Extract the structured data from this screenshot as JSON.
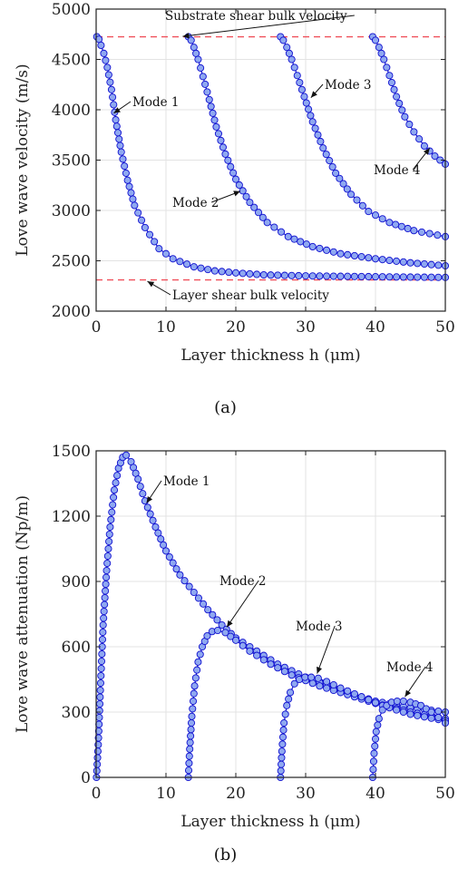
{
  "chart_data": [
    {
      "type": "line",
      "caption": "(a)",
      "xlabel": "Layer thickness h (μm)",
      "ylabel": "Love wave velocity (m/s)",
      "xlim": [
        0,
        50
      ],
      "ylim": [
        2000,
        5000
      ],
      "xticks": [
        "0",
        "10",
        "20",
        "30",
        "40",
        "50"
      ],
      "yticks": [
        "2000",
        "2500",
        "3000",
        "3500",
        "4000",
        "4500",
        "5000"
      ],
      "grid": true,
      "reference_lines": [
        {
          "label": "Substrate shear bulk velocity",
          "y": 4725,
          "color": "#f0505a"
        },
        {
          "label": "Layer shear bulk velocity",
          "y": 2310,
          "color": "#f0505a"
        }
      ],
      "series": [
        {
          "name": "Mode 1",
          "x": [
            0.1,
            0.4,
            0.7,
            1.1,
            1.6,
            2.2,
            2.8,
            3.6,
            4.5,
            5.5,
            7,
            9,
            11,
            14,
            17,
            20,
            24,
            30,
            36,
            42,
            50
          ],
          "y": [
            4725,
            4700,
            4640,
            4560,
            4420,
            4200,
            3900,
            3580,
            3300,
            3050,
            2830,
            2620,
            2520,
            2440,
            2400,
            2380,
            2360,
            2350,
            2345,
            2340,
            2335
          ]
        },
        {
          "name": "Mode 2",
          "x": [
            13.2,
            13.6,
            14,
            14.6,
            15.3,
            16.2,
            17.2,
            18.5,
            20,
            22,
            24.5,
            27.5,
            31,
            35,
            40,
            45,
            50
          ],
          "y": [
            4725,
            4690,
            4620,
            4500,
            4330,
            4100,
            3830,
            3560,
            3310,
            3080,
            2880,
            2740,
            2640,
            2570,
            2520,
            2480,
            2450
          ]
        },
        {
          "name": "Mode 3",
          "x": [
            26.4,
            26.8,
            27.3,
            28,
            28.8,
            29.8,
            31,
            32.5,
            34.3,
            36.5,
            39,
            42,
            45.5,
            50
          ],
          "y": [
            4725,
            4690,
            4620,
            4500,
            4340,
            4130,
            3880,
            3620,
            3370,
            3160,
            2990,
            2880,
            2800,
            2740
          ]
        },
        {
          "name": "Mode 4",
          "x": [
            39.6,
            40,
            40.5,
            41.2,
            42,
            43,
            44.2,
            45.5,
            47,
            48.5,
            50
          ],
          "y": [
            4725,
            4690,
            4620,
            4500,
            4340,
            4130,
            3930,
            3780,
            3640,
            3540,
            3460
          ]
        }
      ],
      "annotations": [
        "Substrate shear bulk velocity",
        "Mode 1",
        "Mode 2",
        "Mode 3",
        "Mode 4",
        "Layer shear bulk velocity"
      ]
    },
    {
      "type": "line",
      "caption": "(b)",
      "xlabel": "Layer thickness h (μm)",
      "ylabel": "Love wave attenuation (Np/m)",
      "xlim": [
        0,
        50
      ],
      "ylim": [
        0,
        1500
      ],
      "xticks": [
        "0",
        "10",
        "20",
        "30",
        "40",
        "50"
      ],
      "yticks": [
        "0",
        "300",
        "600",
        "900",
        "1200",
        "1500"
      ],
      "grid": true,
      "series": [
        {
          "name": "Mode 1",
          "x": [
            0.05,
            0.3,
            0.6,
            1,
            1.5,
            2,
            2.6,
            3.2,
            3.8,
            4.3,
            5,
            6,
            7,
            8.5,
            10,
            12,
            14,
            16,
            18,
            20,
            23,
            26,
            30,
            35,
            40,
            45,
            50
          ],
          "y": [
            0,
            150,
            400,
            700,
            950,
            1150,
            1320,
            1420,
            1470,
            1480,
            1450,
            1370,
            1270,
            1150,
            1040,
            930,
            850,
            770,
            700,
            640,
            580,
            520,
            460,
            400,
            350,
            320,
            300
          ]
        },
        {
          "name": "Mode 2",
          "x": [
            13.2,
            13.4,
            13.7,
            14.1,
            14.6,
            15.2,
            15.9,
            16.6,
            17.4,
            18.5,
            20,
            22,
            25,
            28,
            32,
            36,
            40,
            45,
            50
          ],
          "y": [
            0,
            130,
            280,
            420,
            530,
            600,
            650,
            670,
            675,
            665,
            630,
            580,
            520,
            470,
            420,
            380,
            340,
            300,
            270
          ]
        },
        {
          "name": "Mode 3",
          "x": [
            26.4,
            26.6,
            26.9,
            27.3,
            27.8,
            28.4,
            29.1,
            29.9,
            30.8,
            31.8,
            33,
            35,
            38,
            41,
            45,
            50
          ],
          "y": [
            0,
            120,
            250,
            330,
            390,
            430,
            450,
            460,
            460,
            455,
            440,
            410,
            370,
            330,
            290,
            260
          ]
        },
        {
          "name": "Mode 4",
          "x": [
            39.6,
            39.8,
            40.1,
            40.5,
            41,
            41.6,
            42.3,
            43.1,
            44,
            45,
            46.5,
            48,
            50
          ],
          "y": [
            0,
            110,
            210,
            270,
            310,
            330,
            345,
            350,
            350,
            345,
            330,
            300,
            250
          ]
        }
      ],
      "annotations": [
        "Mode 1",
        "Mode 2",
        "Mode 3",
        "Mode 4"
      ]
    }
  ],
  "style": {
    "line_color": "#1010d0",
    "marker_fill": "#8fa8f0",
    "marker_edge": "#1010d0",
    "ref_color": "#f0505a",
    "grid_color": "#e3e3e3"
  }
}
